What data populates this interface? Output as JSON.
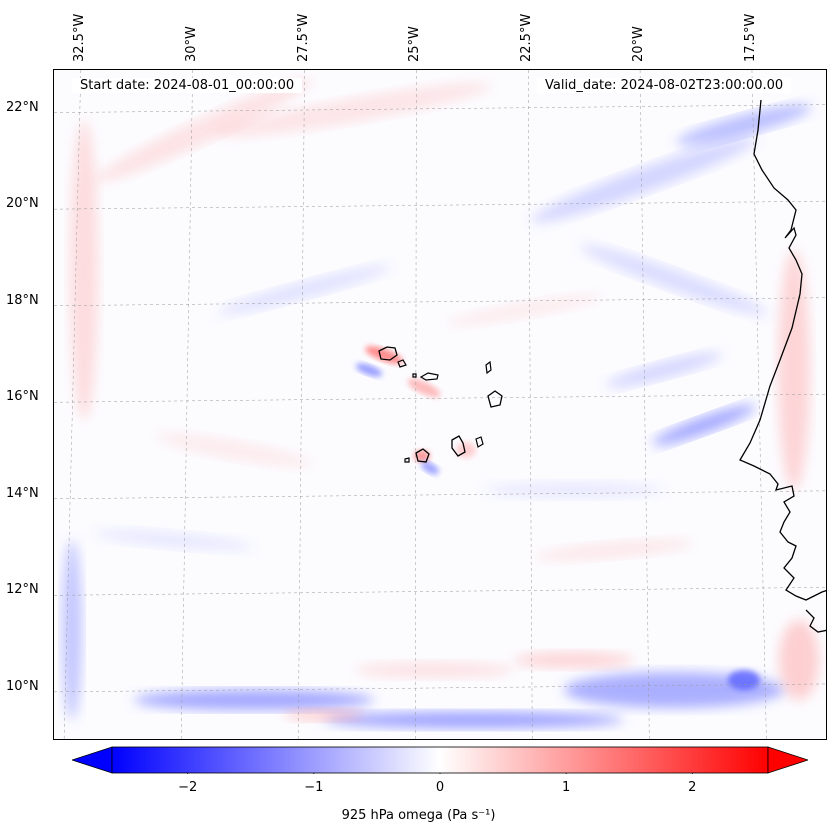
{
  "map": {
    "start_label": "Start date: 2024-08-01_00:00:00",
    "valid_label": "Valid_date: 2024-08-02T23:00:00.00",
    "extent": {
      "lon_min": -33.1,
      "lon_max": -15.8,
      "lat_min": 8.9,
      "lat_max": 22.8
    },
    "lon_ticks": [
      {
        "value": -32.5,
        "label": "32.5°W"
      },
      {
        "value": -30.0,
        "label": "30°W"
      },
      {
        "value": -27.5,
        "label": "27.5°W"
      },
      {
        "value": -25.0,
        "label": "25°W"
      },
      {
        "value": -22.5,
        "label": "22.5°W"
      },
      {
        "value": -20.0,
        "label": "20°W"
      },
      {
        "value": -17.5,
        "label": "17.5°W"
      }
    ],
    "lat_ticks": [
      {
        "value": 10,
        "label": "10°N"
      },
      {
        "value": 12,
        "label": "12°N"
      },
      {
        "value": 14,
        "label": "14°N"
      },
      {
        "value": 16,
        "label": "16°N"
      },
      {
        "value": 18,
        "label": "18°N"
      },
      {
        "value": 20,
        "label": "20°N"
      },
      {
        "value": 22,
        "label": "22°N"
      }
    ],
    "gridlines": true,
    "colors": {
      "negative": "#0000ff",
      "neutral": "#ffffff",
      "positive": "#ff0000",
      "coast": "#000000"
    }
  },
  "colorbar": {
    "label": "925 hPa omega (Pa s⁻¹)",
    "range": [
      -2.6,
      2.6
    ],
    "ticks": [
      {
        "value": -2,
        "label": "−2"
      },
      {
        "value": -1,
        "label": "−1"
      },
      {
        "value": 0,
        "label": "0"
      },
      {
        "value": 1,
        "label": "1"
      },
      {
        "value": 2,
        "label": "2"
      }
    ]
  }
}
